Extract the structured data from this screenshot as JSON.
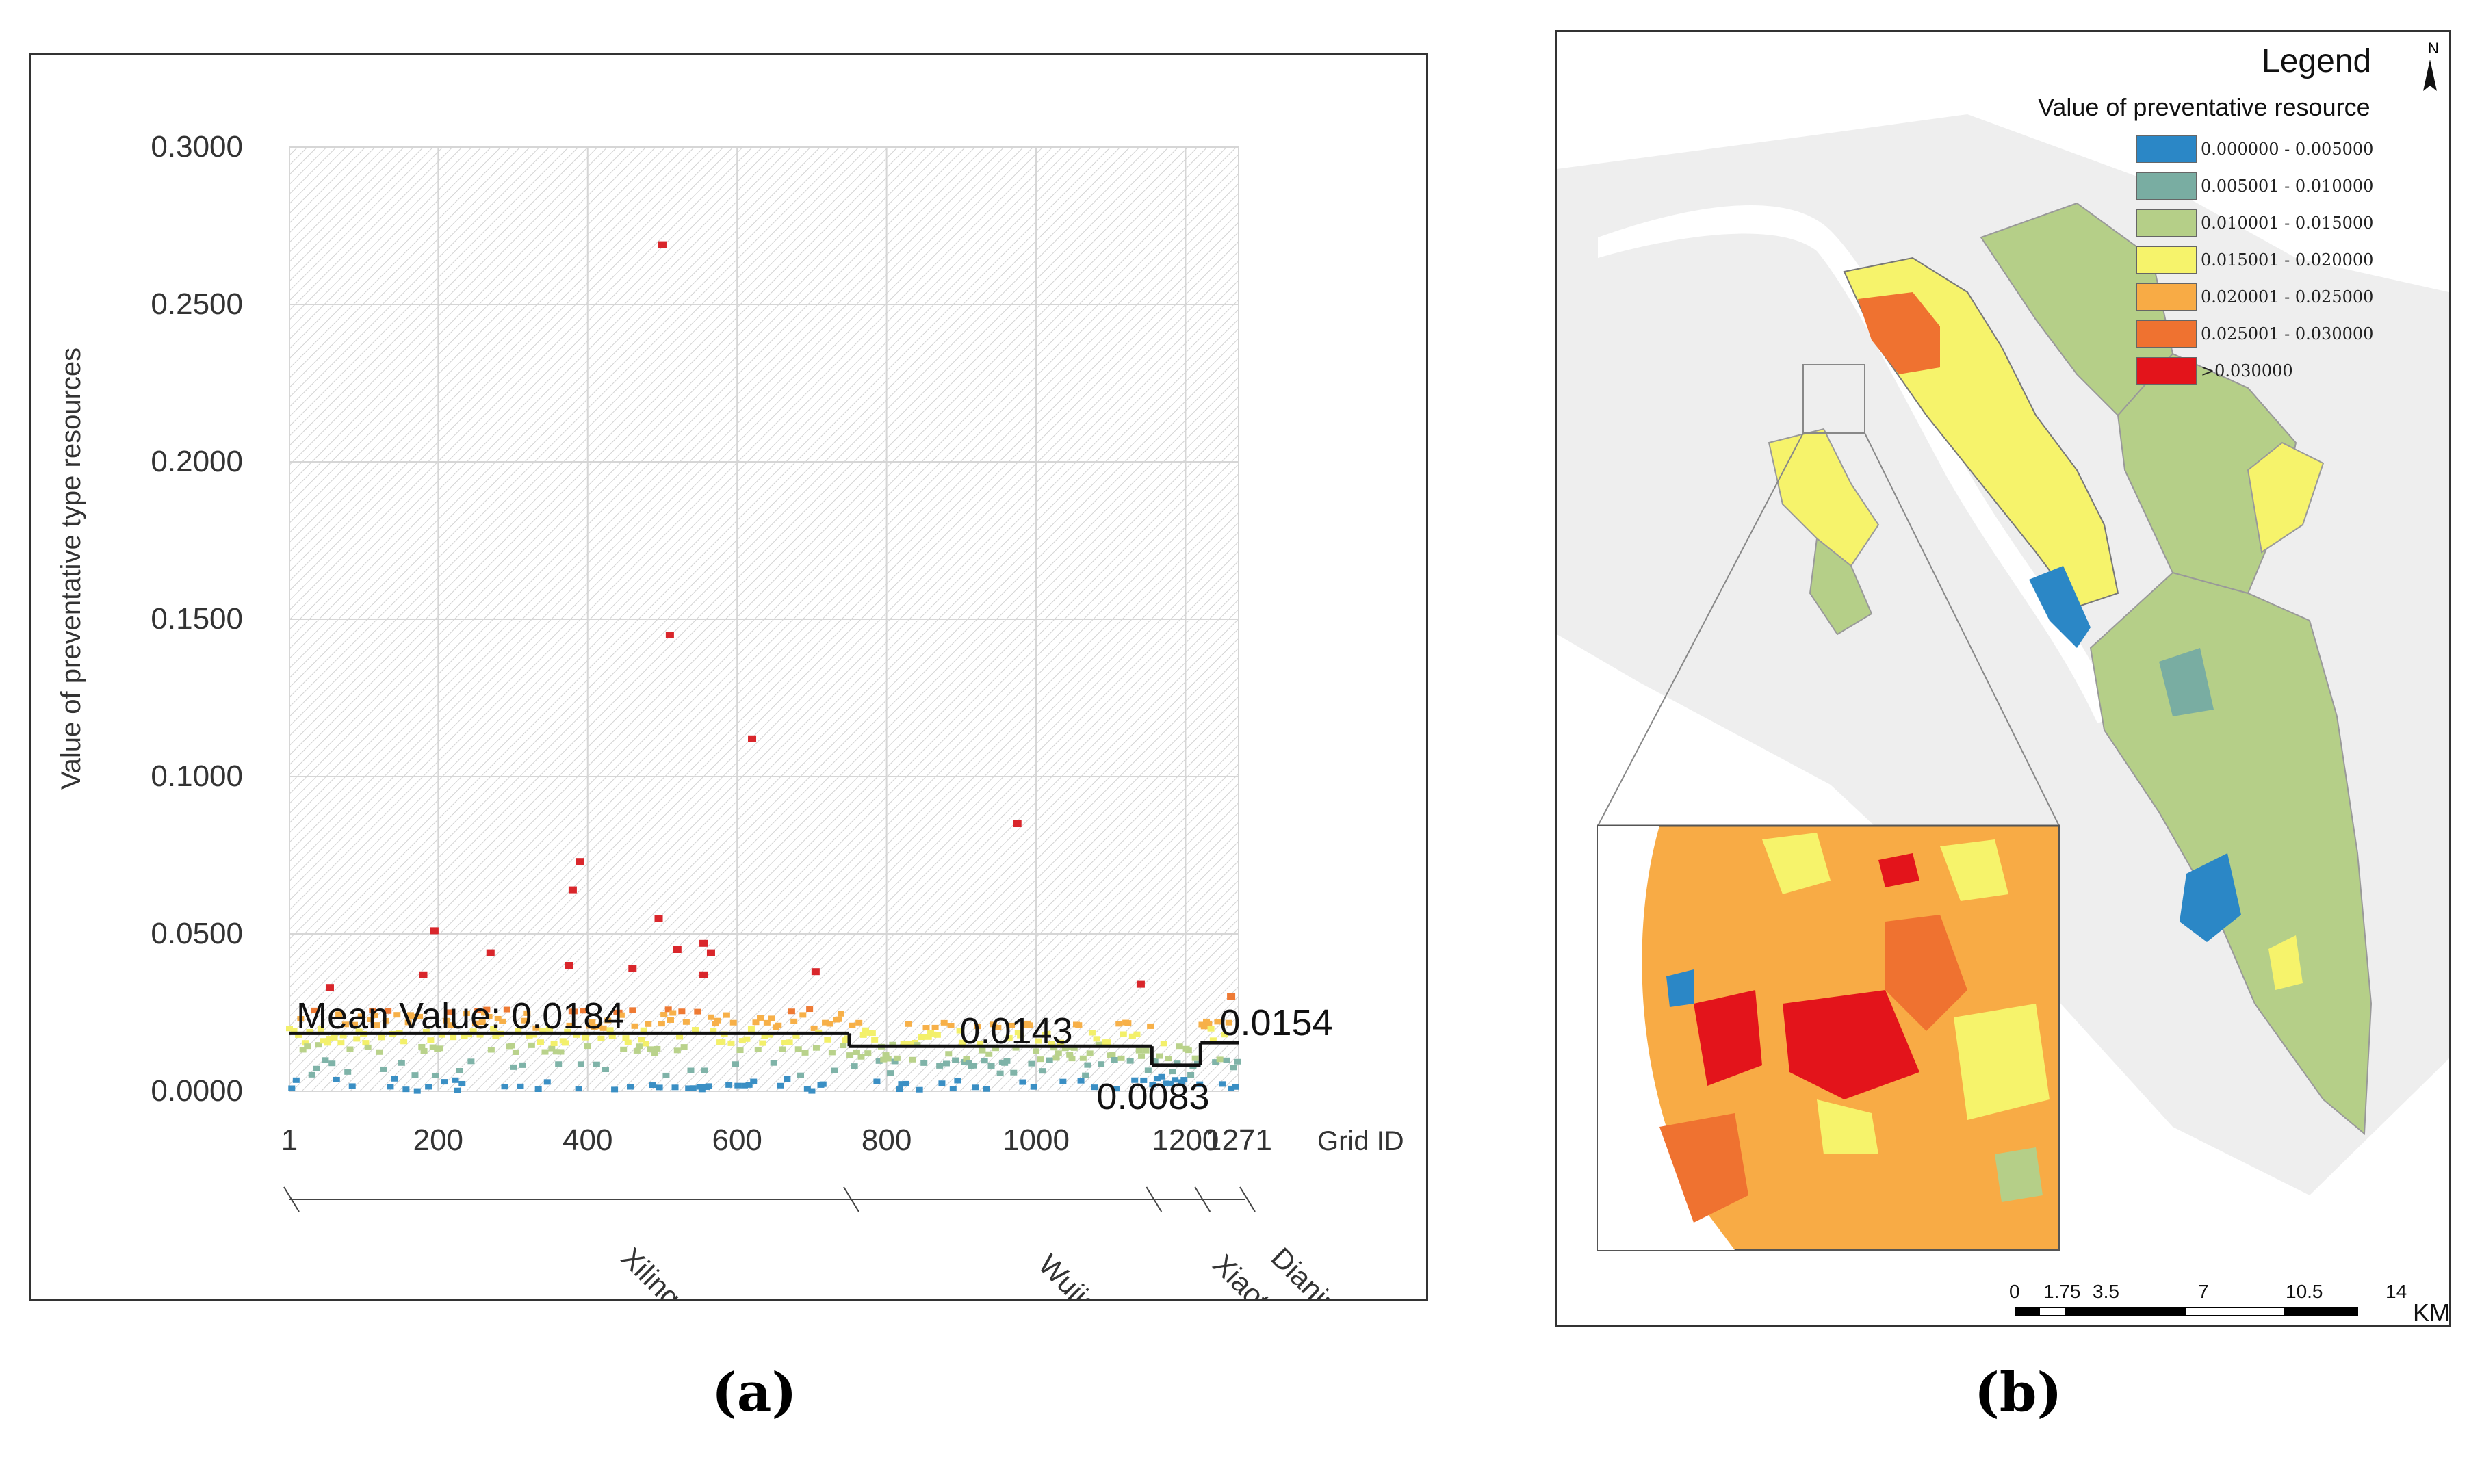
{
  "captions": {
    "a": "(a)",
    "b": "(b)"
  },
  "chart_data": [
    {
      "type": "scatter",
      "title": "",
      "xlabel": "Grid ID",
      "ylabel": "Value of preventative type resources",
      "xlim": [
        1,
        1271
      ],
      "ylim": [
        0,
        0.3
      ],
      "x_ticks": [
        "1",
        "200",
        "400",
        "600",
        "800",
        "1000",
        "1200",
        "1271"
      ],
      "y_ticks": [
        "0.0000",
        "0.0500",
        "0.1000",
        "0.1500",
        "0.2000",
        "0.2500",
        "0.3000"
      ],
      "grid": true,
      "districts": [
        {
          "name": "Xiling",
          "start": 1,
          "end": 750,
          "mean": 0.0184,
          "mean_label": "Mean Value:   0.0184"
        },
        {
          "name": "Wujiagang",
          "start": 750,
          "end": 1155,
          "mean": 0.0143,
          "mean_label": "0.0143"
        },
        {
          "name": "Xiaoting",
          "start": 1155,
          "end": 1220,
          "mean": 0.0083,
          "mean_label": "0.0083"
        },
        {
          "name": "Dianjun",
          "start": 1220,
          "end": 1271,
          "mean": 0.0154,
          "mean_label": "0.0154"
        }
      ],
      "outliers": [
        {
          "x": 500,
          "y": 0.269
        },
        {
          "x": 510,
          "y": 0.145
        },
        {
          "x": 620,
          "y": 0.112
        },
        {
          "x": 975,
          "y": 0.085
        },
        {
          "x": 390,
          "y": 0.073
        },
        {
          "x": 380,
          "y": 0.064
        },
        {
          "x": 495,
          "y": 0.055
        },
        {
          "x": 195,
          "y": 0.051
        },
        {
          "x": 270,
          "y": 0.044
        },
        {
          "x": 555,
          "y": 0.047
        },
        {
          "x": 565,
          "y": 0.044
        },
        {
          "x": 520,
          "y": 0.045
        },
        {
          "x": 460,
          "y": 0.039
        },
        {
          "x": 375,
          "y": 0.04
        },
        {
          "x": 180,
          "y": 0.037
        },
        {
          "x": 705,
          "y": 0.038
        },
        {
          "x": 1140,
          "y": 0.034
        },
        {
          "x": 55,
          "y": 0.033
        },
        {
          "x": 555,
          "y": 0.037
        },
        {
          "x": 1261,
          "y": 0.03
        }
      ],
      "color_classes": [
        {
          "max": 0.005,
          "color": "#3a8fc4"
        },
        {
          "max": 0.01,
          "color": "#7fb3a8"
        },
        {
          "max": 0.015,
          "color": "#b9d28b"
        },
        {
          "max": 0.02,
          "color": "#f3f06a"
        },
        {
          "max": 0.025,
          "color": "#f7b048"
        },
        {
          "max": 0.03,
          "color": "#ee7a34"
        },
        {
          "max": 1.0,
          "color": "#d9262b"
        }
      ]
    }
  ],
  "map": {
    "legend_title": "Legend",
    "legend_subtitle": "Value of preventative resource",
    "classes": [
      {
        "label": "0.000000 - 0.005000",
        "color": "#2b87c6"
      },
      {
        "label": "0.005001 - 0.010000",
        "color": "#79ada2"
      },
      {
        "label": "0.010001 - 0.015000",
        "color": "#b5cf88"
      },
      {
        "label": "0.015001 - 0.020000",
        "color": "#f6f36b"
      },
      {
        "label": "0.020001 - 0.025000",
        "color": "#f8ab45"
      },
      {
        "label": "0.025001 - 0.030000",
        "color": "#ef7230"
      },
      {
        "label": ">0.030000",
        "color": "#e3141b"
      }
    ],
    "north_label": "N",
    "scale_ticks": [
      "0",
      "1.75",
      "3.5",
      "7",
      "10.5",
      "14"
    ],
    "scale_unit": "KM"
  }
}
